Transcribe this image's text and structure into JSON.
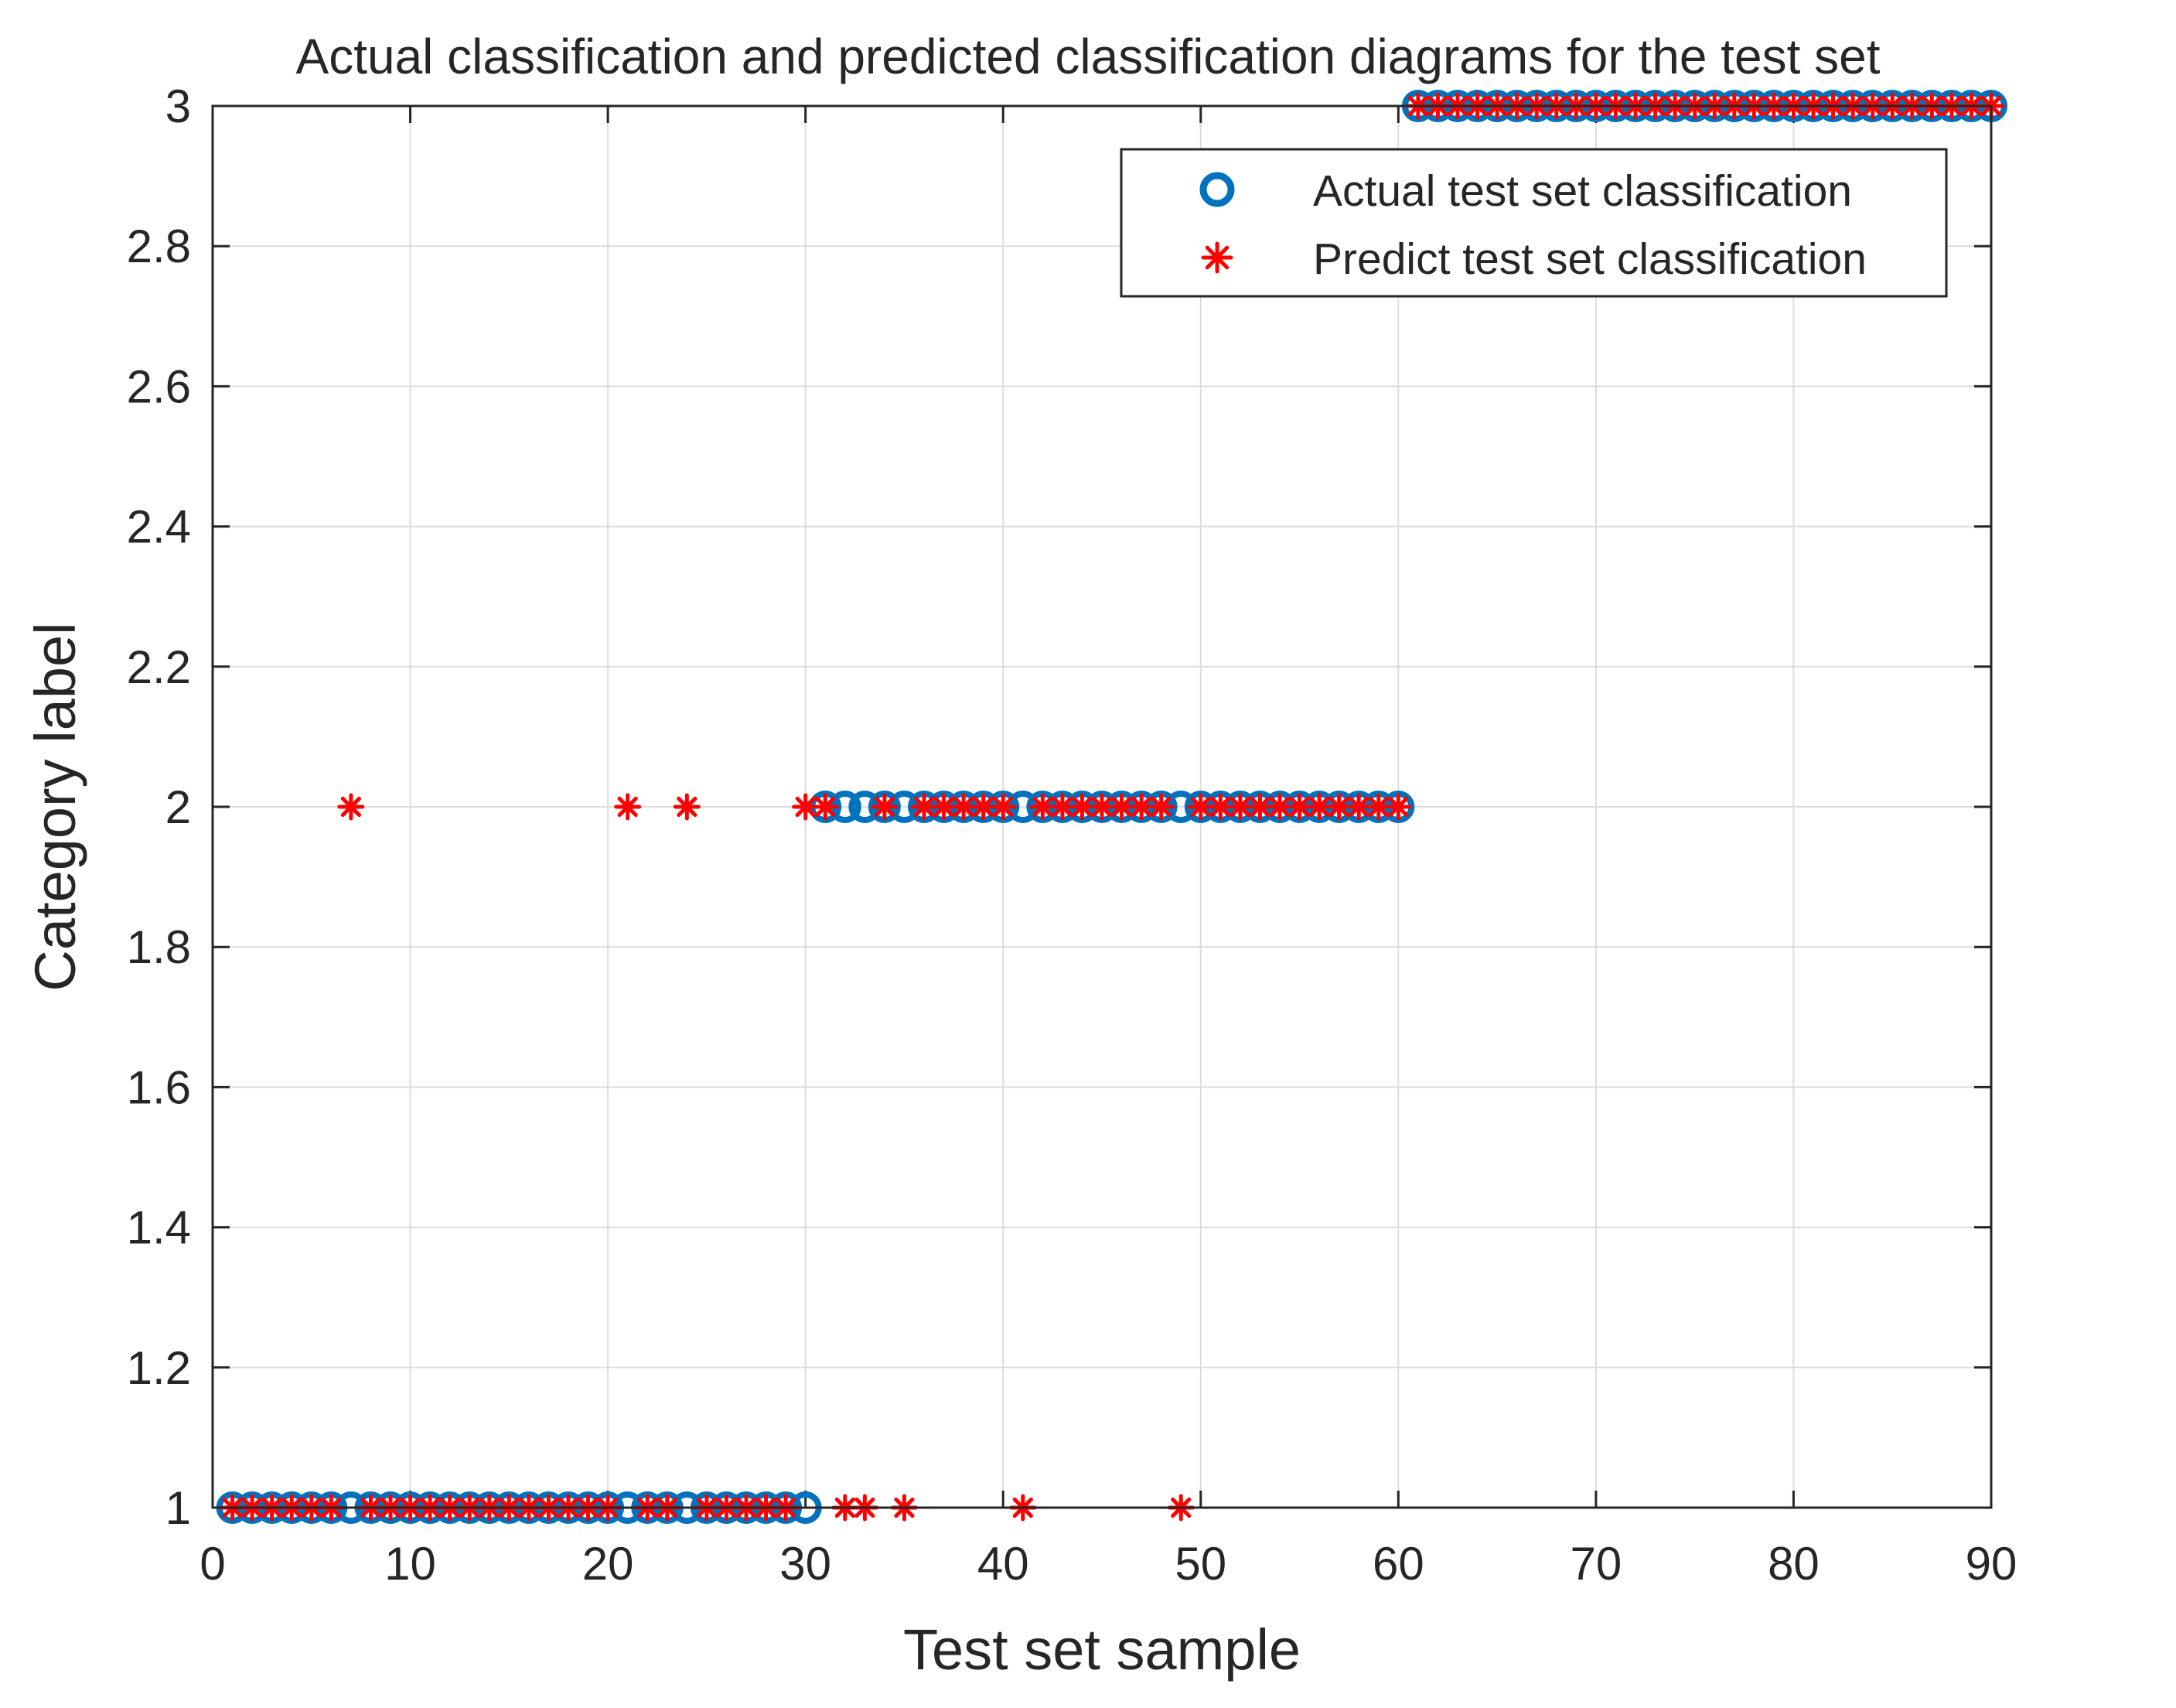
{
  "chart_data": {
    "type": "scatter",
    "title": "Actual classification and predicted classification diagrams for the test set",
    "xlabel": "Test set sample",
    "ylabel": "Category label",
    "xlim": [
      0,
      90
    ],
    "ylim": [
      1,
      3
    ],
    "xticks": [
      0,
      10,
      20,
      30,
      40,
      50,
      60,
      70,
      80,
      90
    ],
    "yticks": [
      1,
      1.2,
      1.4,
      1.6,
      1.8,
      2,
      2.2,
      2.4,
      2.6,
      2.8,
      3
    ],
    "xtick_labels": [
      "0",
      "10",
      "20",
      "30",
      "40",
      "50",
      "60",
      "70",
      "80",
      "90"
    ],
    "ytick_labels": [
      "1",
      "1.2",
      "1.4",
      "1.6",
      "1.8",
      "2",
      "2.2",
      "2.4",
      "2.6",
      "2.8",
      "3"
    ],
    "grid": true,
    "legend_position": "top-right",
    "series": [
      {
        "name": "Actual test set classification",
        "marker": "circle",
        "color": "#0072BD",
        "x": [
          1,
          2,
          3,
          4,
          5,
          6,
          7,
          8,
          9,
          10,
          11,
          12,
          13,
          14,
          15,
          16,
          17,
          18,
          19,
          20,
          21,
          22,
          23,
          24,
          25,
          26,
          27,
          28,
          29,
          30,
          31,
          32,
          33,
          34,
          35,
          36,
          37,
          38,
          39,
          40,
          41,
          42,
          43,
          44,
          45,
          46,
          47,
          48,
          49,
          50,
          51,
          52,
          53,
          54,
          55,
          56,
          57,
          58,
          59,
          60,
          61,
          62,
          63,
          64,
          65,
          66,
          67,
          68,
          69,
          70,
          71,
          72,
          73,
          74,
          75,
          76,
          77,
          78,
          79,
          80,
          81,
          82,
          83,
          84,
          85,
          86,
          87,
          88,
          89,
          90
        ],
        "y": [
          1,
          1,
          1,
          1,
          1,
          1,
          1,
          1,
          1,
          1,
          1,
          1,
          1,
          1,
          1,
          1,
          1,
          1,
          1,
          1,
          1,
          1,
          1,
          1,
          1,
          1,
          1,
          1,
          1,
          1,
          2,
          2,
          2,
          2,
          2,
          2,
          2,
          2,
          2,
          2,
          2,
          2,
          2,
          2,
          2,
          2,
          2,
          2,
          2,
          2,
          2,
          2,
          2,
          2,
          2,
          2,
          2,
          2,
          2,
          2,
          3,
          3,
          3,
          3,
          3,
          3,
          3,
          3,
          3,
          3,
          3,
          3,
          3,
          3,
          3,
          3,
          3,
          3,
          3,
          3,
          3,
          3,
          3,
          3,
          3,
          3,
          3,
          3,
          3,
          3
        ]
      },
      {
        "name": "Predict test set classification",
        "marker": "asterisk",
        "color": "#FF0000",
        "x": [
          1,
          2,
          3,
          4,
          5,
          6,
          7,
          8,
          9,
          10,
          11,
          12,
          13,
          14,
          15,
          16,
          17,
          18,
          19,
          20,
          21,
          22,
          23,
          24,
          25,
          26,
          27,
          28,
          29,
          30,
          31,
          32,
          33,
          34,
          35,
          36,
          37,
          38,
          39,
          40,
          41,
          42,
          43,
          44,
          45,
          46,
          47,
          48,
          49,
          50,
          51,
          52,
          53,
          54,
          55,
          56,
          57,
          58,
          59,
          60,
          61,
          62,
          63,
          64,
          65,
          66,
          67,
          68,
          69,
          70,
          71,
          72,
          73,
          74,
          75,
          76,
          77,
          78,
          79,
          80,
          81,
          82,
          83,
          84,
          85,
          86,
          87,
          88,
          89,
          90
        ],
        "y": [
          1,
          1,
          1,
          1,
          1,
          1,
          2,
          1,
          1,
          1,
          1,
          1,
          1,
          1,
          1,
          1,
          1,
          1,
          1,
          1,
          2,
          1,
          1,
          2,
          1,
          1,
          1,
          1,
          1,
          2,
          2,
          1,
          1,
          2,
          1,
          2,
          2,
          2,
          2,
          2,
          1,
          2,
          2,
          2,
          2,
          2,
          2,
          2,
          1,
          2,
          2,
          2,
          2,
          2,
          2,
          2,
          2,
          2,
          2,
          2,
          3,
          3,
          3,
          3,
          3,
          3,
          3,
          3,
          3,
          3,
          3,
          3,
          3,
          3,
          3,
          3,
          3,
          3,
          3,
          3,
          3,
          3,
          3,
          3,
          3,
          3,
          3,
          3,
          3,
          3
        ]
      }
    ]
  }
}
